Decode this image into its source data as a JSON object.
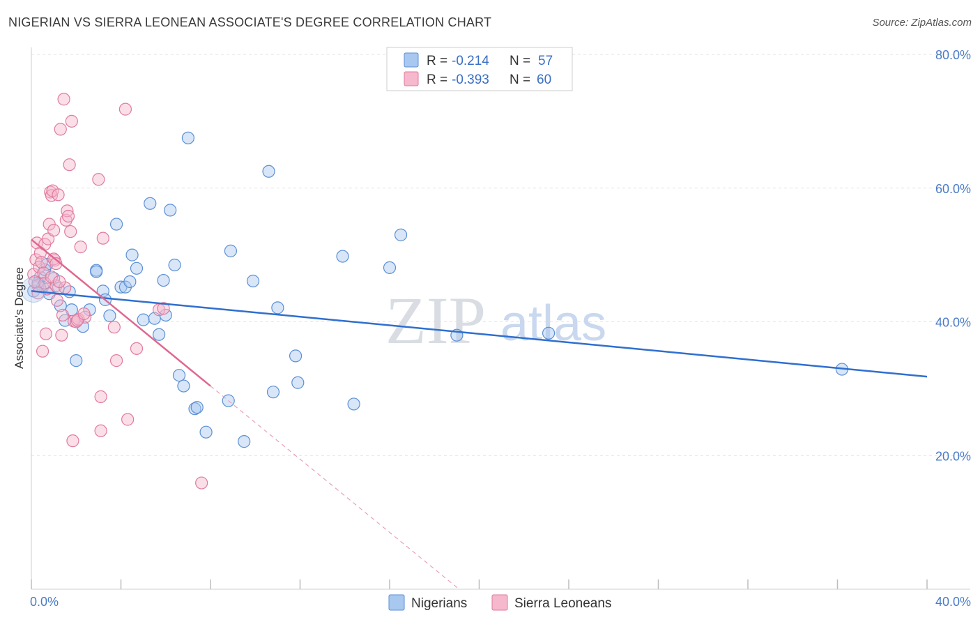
{
  "header": {
    "title": "NIGERIAN VS SIERRA LEONEAN ASSOCIATE'S DEGREE CORRELATION CHART",
    "source": "Source: ZipAtlas.com"
  },
  "watermark": {
    "zip": "ZIP",
    "atlas": "atlas"
  },
  "legend_top": {
    "rows": [
      {
        "r_label": "R =",
        "r_value": "-0.214",
        "n_label": "N =",
        "n_value": "57",
        "color": "#a9c8ef",
        "edge": "#5b8fd4"
      },
      {
        "r_label": "R =",
        "r_value": "-0.393",
        "n_label": "N =",
        "n_value": "60",
        "color": "#f5b8cc",
        "edge": "#e07aa0"
      }
    ]
  },
  "legend_bottom": {
    "items": [
      {
        "label": "Nigerians",
        "color": "#a9c8ef",
        "edge": "#5b8fd4"
      },
      {
        "label": "Sierra Leoneans",
        "color": "#f5b8cc",
        "edge": "#e07aa0"
      }
    ]
  },
  "chart_data": {
    "type": "scatter",
    "title": "NIGERIAN VS SIERRA LEONEAN ASSOCIATE'S DEGREE CORRELATION CHART",
    "xlabel": "",
    "ylabel": "Associate's Degree",
    "xlim": [
      0,
      40
    ],
    "ylim": [
      0,
      80
    ],
    "x_tick_labels": [
      "0.0%",
      "40.0%"
    ],
    "y_ticks": [
      20,
      40,
      60,
      80
    ],
    "y_tick_labels": [
      "20.0%",
      "40.0%",
      "60.0%",
      "80.0%"
    ],
    "series": [
      {
        "name": "Nigerians",
        "color": "#5b8fd4",
        "fill": "#a9c8ef",
        "trend": {
          "x0": 0,
          "y0": 44.6,
          "x1": 40,
          "y1": 31.8,
          "dashed_from": null
        },
        "points": [
          [
            0.1,
            44.6
          ],
          [
            0.3,
            45.8
          ],
          [
            0.4,
            46.7
          ],
          [
            0.5,
            45.2
          ],
          [
            0.6,
            47.8
          ],
          [
            0.7,
            48.6
          ],
          [
            0.8,
            44.2
          ],
          [
            1.0,
            46.5
          ],
          [
            1.2,
            45.0
          ],
          [
            1.3,
            42.4
          ],
          [
            1.5,
            40.2
          ],
          [
            1.7,
            44.5
          ],
          [
            1.8,
            41.8
          ],
          [
            2.0,
            34.2
          ],
          [
            2.3,
            39.3
          ],
          [
            2.6,
            41.8
          ],
          [
            2.9,
            47.7
          ],
          [
            3.2,
            44.6
          ],
          [
            3.3,
            43.3
          ],
          [
            3.5,
            40.9
          ],
          [
            3.8,
            54.6
          ],
          [
            4.0,
            45.2
          ],
          [
            4.2,
            45.2
          ],
          [
            4.4,
            46.0
          ],
          [
            4.5,
            50.0
          ],
          [
            4.7,
            48.0
          ],
          [
            5.0,
            40.3
          ],
          [
            5.3,
            57.7
          ],
          [
            5.5,
            40.5
          ],
          [
            5.7,
            38.1
          ],
          [
            5.9,
            46.2
          ],
          [
            6.0,
            41.0
          ],
          [
            6.2,
            56.7
          ],
          [
            6.4,
            48.5
          ],
          [
            6.6,
            32.0
          ],
          [
            6.8,
            30.4
          ],
          [
            7.0,
            67.5
          ],
          [
            7.3,
            27.0
          ],
          [
            7.4,
            27.2
          ],
          [
            7.8,
            23.5
          ],
          [
            8.8,
            28.2
          ],
          [
            9.5,
            22.1
          ],
          [
            8.9,
            50.6
          ],
          [
            9.9,
            46.1
          ],
          [
            10.6,
            62.5
          ],
          [
            10.8,
            29.5
          ],
          [
            11.0,
            42.1
          ],
          [
            11.8,
            34.9
          ],
          [
            11.9,
            30.9
          ],
          [
            13.9,
            49.8
          ],
          [
            14.4,
            27.7
          ],
          [
            16.0,
            48.1
          ],
          [
            16.5,
            53.0
          ],
          [
            19.0,
            38.0
          ],
          [
            23.1,
            38.3
          ],
          [
            36.2,
            32.9
          ],
          [
            2.9,
            47.5
          ]
        ]
      },
      {
        "name": "Sierra Leoneans",
        "color": "#e07aa0",
        "fill": "#f5b8cc",
        "trend": {
          "x0": 0,
          "y0": 52.3,
          "x1": 8.0,
          "y1": 30.4,
          "dashed_to_x": 19.1
        },
        "points": [
          [
            0.1,
            47.1
          ],
          [
            0.2,
            49.3
          ],
          [
            0.25,
            51.8
          ],
          [
            0.3,
            45.4
          ],
          [
            0.35,
            48.2
          ],
          [
            0.4,
            50.3
          ],
          [
            0.5,
            35.6
          ],
          [
            0.6,
            51.6
          ],
          [
            0.65,
            38.2
          ],
          [
            0.7,
            44.9
          ],
          [
            0.75,
            52.4
          ],
          [
            0.8,
            54.6
          ],
          [
            0.85,
            59.4
          ],
          [
            0.9,
            58.9
          ],
          [
            0.95,
            59.6
          ],
          [
            1.0,
            53.7
          ],
          [
            1.05,
            49.2
          ],
          [
            1.1,
            45.4
          ],
          [
            1.15,
            43.2
          ],
          [
            1.2,
            59.0
          ],
          [
            1.3,
            68.8
          ],
          [
            1.35,
            38.0
          ],
          [
            1.4,
            41.0
          ],
          [
            1.45,
            73.3
          ],
          [
            1.5,
            45.1
          ],
          [
            1.55,
            55.2
          ],
          [
            1.6,
            56.6
          ],
          [
            1.65,
            55.8
          ],
          [
            1.7,
            63.5
          ],
          [
            1.75,
            53.5
          ],
          [
            1.8,
            70.0
          ],
          [
            1.85,
            22.2
          ],
          [
            1.9,
            40.1
          ],
          [
            2.0,
            40.0
          ],
          [
            2.1,
            40.4
          ],
          [
            2.2,
            51.2
          ],
          [
            2.4,
            40.7
          ],
          [
            3.0,
            61.3
          ],
          [
            3.1,
            28.8
          ],
          [
            3.1,
            23.7
          ],
          [
            3.2,
            52.5
          ],
          [
            3.7,
            39.2
          ],
          [
            3.8,
            34.2
          ],
          [
            4.2,
            71.8
          ],
          [
            4.3,
            25.4
          ],
          [
            4.7,
            36.0
          ],
          [
            5.7,
            41.8
          ],
          [
            5.9,
            42.0
          ],
          [
            7.6,
            15.9
          ],
          [
            0.15,
            46.0
          ],
          [
            0.45,
            48.9
          ],
          [
            0.55,
            47.3
          ],
          [
            0.6,
            45.8
          ],
          [
            0.9,
            46.7
          ],
          [
            1.0,
            49.4
          ],
          [
            1.1,
            48.7
          ],
          [
            1.25,
            46.0
          ],
          [
            2.05,
            40.2
          ],
          [
            2.35,
            41.2
          ],
          [
            0.3,
            44.3
          ]
        ]
      }
    ]
  }
}
